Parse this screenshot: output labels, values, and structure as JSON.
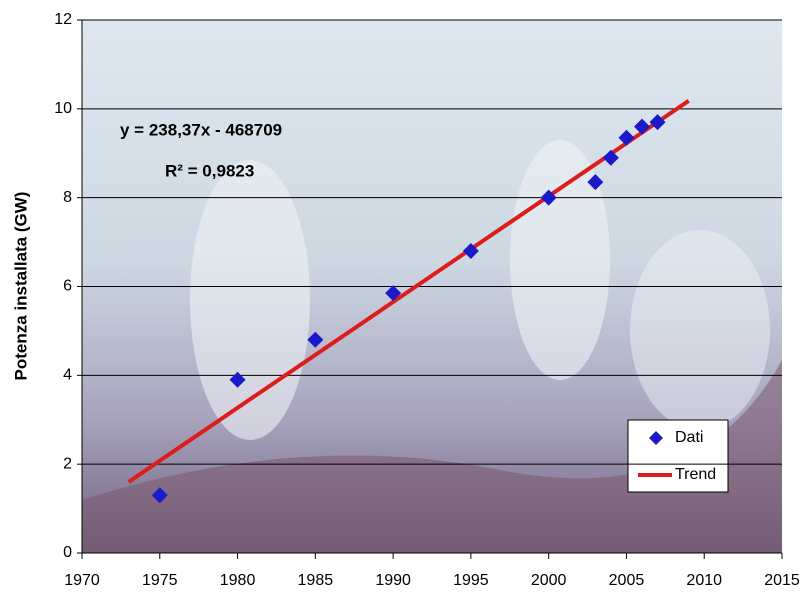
{
  "chart_data": {
    "type": "scatter",
    "ylabel": "Potenza installata (GW)",
    "annotations": [
      "y = 238,37x - 468709",
      "R² = 0,9823"
    ],
    "series": [
      {
        "name": "Dati",
        "color": "#1a1ac8",
        "x": [
          1975,
          1980,
          1985,
          1990,
          1995,
          2000,
          2003,
          2004,
          2005,
          2006,
          2007
        ],
        "values": [
          1.3,
          3.9,
          4.8,
          5.85,
          6.8,
          8.0,
          8.35,
          8.9,
          9.35,
          9.6,
          9.7
        ]
      },
      {
        "name": "Trend",
        "color": "#dd1c1c",
        "x": [
          1973,
          2009
        ],
        "values": [
          1.6,
          10.18
        ]
      }
    ],
    "xlim": [
      1970,
      2015
    ],
    "xticks": [
      1970,
      1975,
      1980,
      1985,
      1990,
      1995,
      2000,
      2005,
      2010,
      2015
    ],
    "ylim": [
      0,
      12
    ],
    "yticks": [
      0,
      2,
      4,
      6,
      8,
      10,
      12
    ],
    "grid": true,
    "legend": "lower right"
  }
}
